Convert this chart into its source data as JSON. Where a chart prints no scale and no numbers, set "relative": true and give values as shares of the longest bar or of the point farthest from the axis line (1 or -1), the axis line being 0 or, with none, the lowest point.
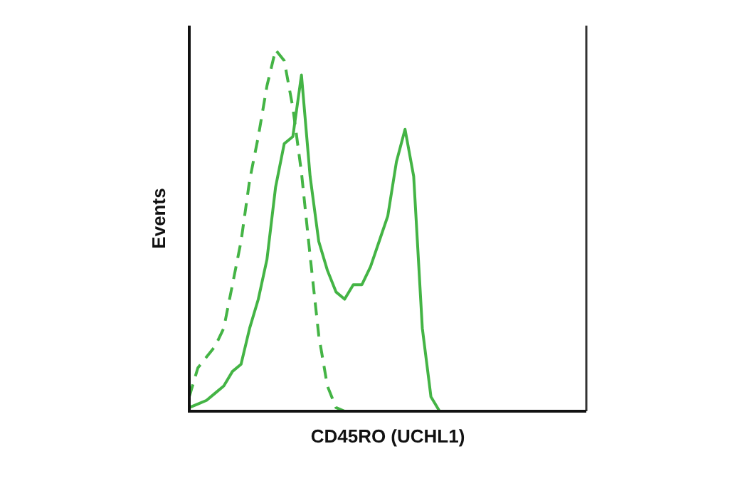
{
  "chart_data": {
    "type": "line",
    "relative": true,
    "ylabel": "Events",
    "xlabel": "CD45RO (UCHL1)",
    "categories": [
      null,
      null,
      null,
      null,
      null,
      null,
      null,
      null,
      null,
      null,
      null,
      null,
      null,
      null,
      null,
      null,
      null,
      null,
      null,
      null,
      null,
      null,
      null,
      null,
      null,
      null,
      null,
      null,
      null,
      null,
      null,
      null,
      null,
      null,
      null,
      null,
      null,
      null,
      null,
      null,
      null,
      null,
      null,
      null,
      null,
      null,
      null
    ],
    "marker": "none",
    "series": [
      {
        "color": "#44b445",
        "line_style": "dashed",
        "values": [
          0.04,
          0.12,
          0.15,
          0.18,
          0.23,
          0.35,
          0.47,
          0.64,
          0.76,
          0.9,
          1.0,
          0.97,
          0.84,
          0.66,
          0.43,
          0.21,
          0.07,
          0.01,
          0,
          null,
          null,
          null,
          null,
          null,
          null,
          null,
          null,
          null,
          null,
          null,
          null,
          null,
          null,
          null,
          null,
          null,
          null,
          null,
          null,
          null,
          null,
          null,
          null,
          null,
          null,
          null,
          null
        ]
      },
      {
        "color": "#44b445",
        "line_style": "solid",
        "values": [
          0.01,
          0.02,
          0.03,
          0.05,
          0.07,
          0.11,
          0.13,
          0.23,
          0.31,
          0.42,
          0.62,
          0.74,
          0.76,
          0.93,
          0.65,
          0.47,
          0.39,
          0.33,
          0.31,
          0.35,
          0.35,
          0.4,
          0.47,
          0.54,
          0.69,
          0.78,
          0.65,
          0.23,
          0.04,
          0,
          null,
          null,
          null,
          null,
          null,
          null,
          null,
          null,
          null,
          null,
          null,
          null,
          null,
          null,
          null,
          null,
          null
        ]
      }
    ]
  }
}
